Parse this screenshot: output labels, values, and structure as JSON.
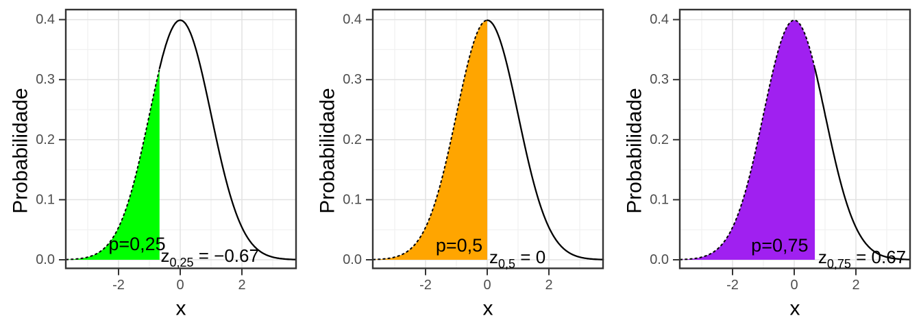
{
  "figure": {
    "background": "#FFFFFF",
    "panel_border_color": "#333333",
    "grid_major_color": "#E2E2E2",
    "grid_minor_color": "#F1F1F1",
    "tick_color": "#333333",
    "tick_label_color": "#4D4D4D",
    "axis_title_color": "#000000",
    "curve_color": "#000000",
    "annotation_color": "#000000"
  },
  "chart_data": {
    "type": "area",
    "title": "",
    "subtitle": "",
    "description": "Standard normal probability density N(0,1); each panel shades the lower-tail region up to the quantile z_p",
    "xlabel": "x",
    "ylabel": "Probabilidade",
    "x_ticks": [
      {
        "value": -2,
        "label": "-2"
      },
      {
        "value": 0,
        "label": "0"
      },
      {
        "value": 2,
        "label": "2"
      }
    ],
    "x_minor_ticks": [
      -3,
      -1,
      1,
      3
    ],
    "y_ticks": [
      {
        "value": 0.0,
        "label": "0.0"
      },
      {
        "value": 0.1,
        "label": "0.1"
      },
      {
        "value": 0.2,
        "label": "0.2"
      },
      {
        "value": 0.3,
        "label": "0.3"
      },
      {
        "value": 0.4,
        "label": "0.4"
      }
    ],
    "y_minor_ticks": [
      0.05,
      0.15,
      0.25,
      0.35
    ],
    "xlim": [
      -3.71,
      3.76
    ],
    "ylim": [
      -0.0143,
      0.4166
    ],
    "curve": "y = exp(-x^2/2)/sqrt(2*pi)",
    "curve_peak": 0.3989,
    "grid": true,
    "panels": [
      {
        "name": "quantile-25",
        "p": 0.25,
        "p_label": "p=0,25",
        "z": -0.67,
        "z_base": "z",
        "z_sub": "0,25",
        "z_eq": "=",
        "z_value": "−0.67",
        "fill_color": "#00FF00",
        "p_label_pos": {
          "x": -1.4,
          "y": 0.0274
        },
        "z_label_pos": {
          "x": 0.96,
          "y": 0.0068
        }
      },
      {
        "name": "quantile-50",
        "p": 0.5,
        "p_label": "p=0,5",
        "z": 0,
        "z_base": "z",
        "z_sub": "0,5",
        "z_eq": "=",
        "z_value": "0",
        "fill_color": "#FFA500",
        "p_label_pos": {
          "x": -0.91,
          "y": 0.0251
        },
        "z_label_pos": {
          "x": 0.98,
          "y": 0.0046
        }
      },
      {
        "name": "quantile-75",
        "p": 0.75,
        "p_label": "p=0,75",
        "z": 0.67,
        "z_base": "z",
        "z_sub": "0,75",
        "z_eq": "=",
        "z_value": "0.67",
        "fill_color": "#A020F0",
        "p_label_pos": {
          "x": -0.47,
          "y": 0.0251
        },
        "z_label_pos": {
          "x": 2.2,
          "y": 0.0046
        }
      }
    ]
  }
}
